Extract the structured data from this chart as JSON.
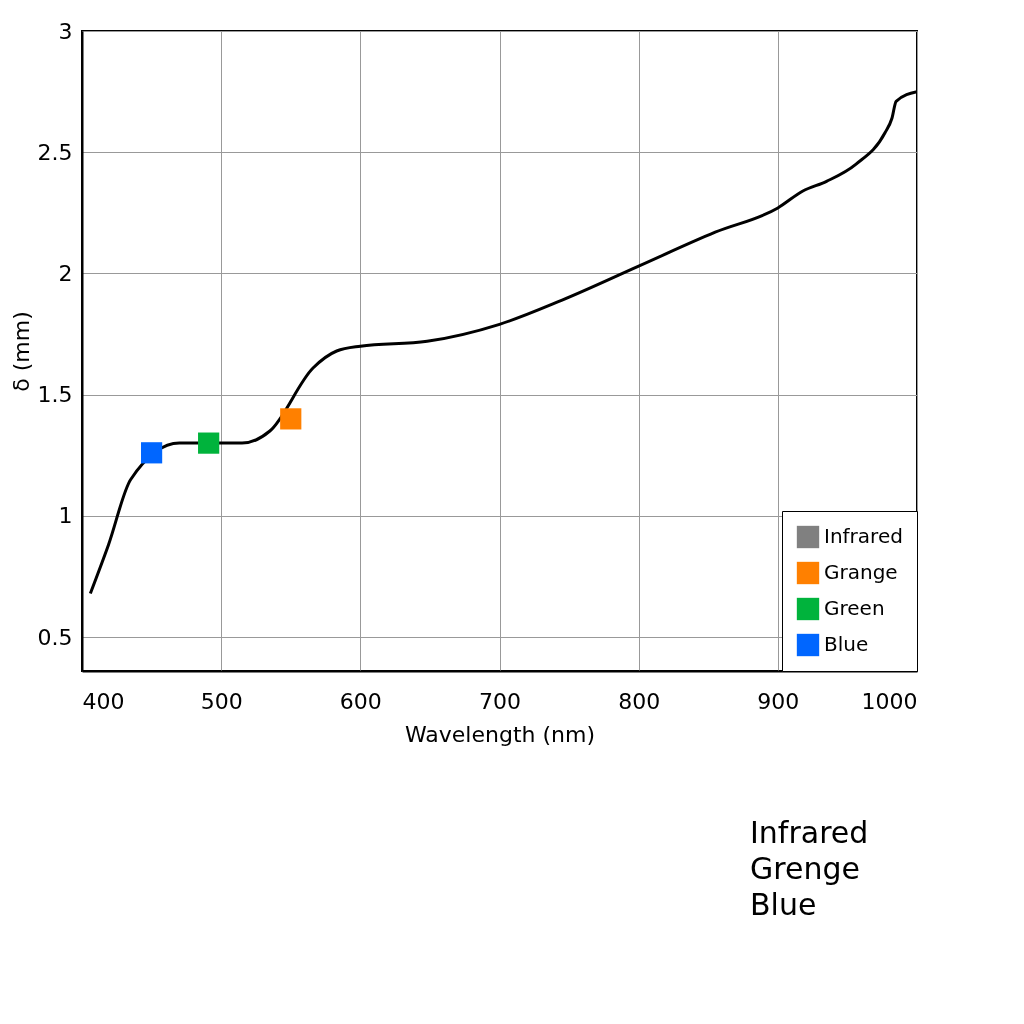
{
  "chart_data": {
    "type": "line",
    "xlabel": "Wavelength (nm)",
    "ylabel": "δ (mm)",
    "xlim": [
      400,
      1000
    ],
    "ylim": [
      0.36,
      3
    ],
    "xticks": [
      400,
      500,
      600,
      700,
      800,
      900,
      1000
    ],
    "yticks": [
      0.5,
      1,
      1.5,
      2,
      2.5,
      3
    ],
    "grid": true,
    "legend": "bottom right",
    "series": [
      {
        "color": "#000000",
        "x": [
          406,
          419,
          435,
          470,
          515,
          535,
          566,
          583,
          600,
          648,
          700,
          745,
          800,
          855,
          900,
          918,
          935,
          956,
          977,
          982,
          985,
          1000
        ],
        "values": [
          0.68,
          0.88,
          1.15,
          1.3,
          1.3,
          1.35,
          1.61,
          1.68,
          1.7,
          1.72,
          1.79,
          1.89,
          2.03,
          2.17,
          2.27,
          2.34,
          2.38,
          2.45,
          2.58,
          2.64,
          2.71,
          2.75
        ]
      },
      {
        "type": "scatter",
        "name": "Infrared",
        "color": "#808080",
        "marker": "square"
      },
      {
        "type": "scatter",
        "name": "Grange",
        "color": "#ff8000",
        "marker": "square",
        "x": [
          550
        ],
        "values": [
          1.4
        ]
      },
      {
        "type": "scatter",
        "name": "Green",
        "color": "#00b33c",
        "marker": "square",
        "x": [
          491
        ],
        "values": [
          1.3
        ]
      },
      {
        "type": "scatter",
        "name": "Blue",
        "color": "#0066ff",
        "marker": "square",
        "x": [
          450
        ],
        "values": [
          1.26
        ]
      }
    ],
    "annotations": [
      "Infrared",
      "Grenge",
      "Blue"
    ]
  }
}
